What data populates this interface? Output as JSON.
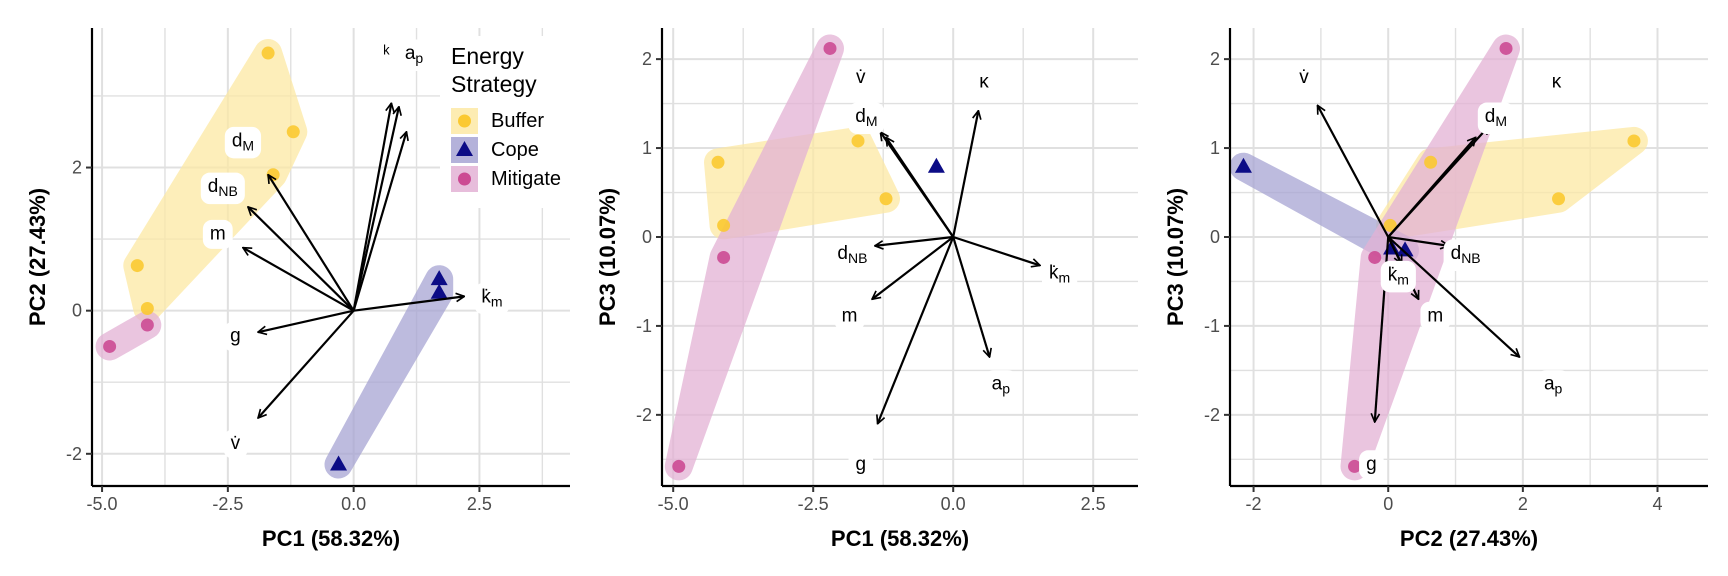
{
  "chart_data": [
    {
      "type": "scatter",
      "panel": "PCA biplot",
      "xlabel": "PC1 (58.32%)",
      "ylabel": "PC2 (27.43%)",
      "xlim": [
        -5.2,
        4.3
      ],
      "ylim": [
        -2.45,
        3.95
      ],
      "xticks": [
        -5.0,
        -2.5,
        0.0,
        2.5
      ],
      "xtick_labels": [
        "-5.0",
        "-2.5",
        "0.0",
        "2.5"
      ],
      "yticks": [
        -2,
        0,
        2
      ],
      "ytick_labels": [
        "-2",
        "0",
        "2"
      ],
      "series": [
        {
          "name": "Buffer",
          "points": [
            [
              -1.7,
              3.6
            ],
            [
              -1.2,
              2.5
            ],
            [
              -4.3,
              0.63
            ],
            [
              -4.1,
              0.03
            ],
            [
              -1.6,
              1.9
            ]
          ]
        },
        {
          "name": "Cope",
          "points": [
            [
              1.7,
              0.44
            ],
            [
              1.7,
              0.25
            ],
            [
              -0.3,
              -2.15
            ]
          ]
        },
        {
          "name": "Mitigate",
          "points": [
            [
              -4.85,
              -0.5
            ],
            [
              -4.1,
              -0.2
            ]
          ]
        }
      ],
      "vectors": [
        {
          "label": "a_p",
          "x": 0.75,
          "y": 2.9
        },
        {
          "label": "a_p",
          "x": 0.9,
          "y": 2.85
        },
        {
          "label": "a_p",
          "x": 1.05,
          "y": 2.5
        },
        {
          "label": "d_M",
          "x": -1.7,
          "y": 1.9
        },
        {
          "label": "d_NB",
          "x": -2.1,
          "y": 1.45
        },
        {
          "label": "m",
          "x": -2.2,
          "y": 0.88
        },
        {
          "label": "g",
          "x": -1.9,
          "y": -0.3
        },
        {
          "label": "v̇",
          "x": -1.9,
          "y": -1.5
        },
        {
          "label": "k̇_m",
          "x": 2.2,
          "y": 0.2
        }
      ],
      "vector_labels": [
        {
          "text": "ᵏ",
          "x": 0.65,
          "y": 3.6
        },
        {
          "text": "a",
          "sub": "p",
          "x": 1.2,
          "y": 3.6
        },
        {
          "text": "d",
          "sub": "M",
          "x": -2.2,
          "y": 2.38
        },
        {
          "text": "d",
          "sub": "NB",
          "x": -2.6,
          "y": 1.74
        },
        {
          "text": "m",
          "x": -2.7,
          "y": 1.08
        },
        {
          "text": "g",
          "x": -2.35,
          "y": -0.35
        },
        {
          "text": "v̇",
          "x": -2.35,
          "y": -1.85
        },
        {
          "text": "k̇",
          "sub": "m",
          "x": 2.75,
          "y": 0.2
        }
      ]
    },
    {
      "type": "scatter",
      "panel": "PCA biplot",
      "xlabel": "PC1 (58.32%)",
      "ylabel": "PC3 (10.07%)",
      "xlim": [
        -5.2,
        3.3
      ],
      "ylim": [
        -2.8,
        2.35
      ],
      "xticks": [
        -5.0,
        -2.5,
        0.0,
        2.5
      ],
      "xtick_labels": [
        "-5.0",
        "-2.5",
        "0.0",
        "2.5"
      ],
      "yticks": [
        -2,
        -1,
        0,
        1,
        2
      ],
      "ytick_labels": [
        "-2",
        "-1",
        "0",
        "1",
        "2"
      ],
      "series": [
        {
          "name": "Buffer",
          "points": [
            [
              -4.2,
              0.84
            ],
            [
              -4.1,
              0.13
            ],
            [
              -1.7,
              1.08
            ],
            [
              -1.2,
              0.43
            ]
          ]
        },
        {
          "name": "Cope",
          "points": [
            [
              -0.3,
              0.79
            ]
          ]
        },
        {
          "name": "Mitigate",
          "points": [
            [
              -2.2,
              2.12
            ],
            [
              -4.1,
              -0.23
            ],
            [
              -4.9,
              -2.58
            ]
          ]
        }
      ],
      "vectors": [
        {
          "label": "κ",
          "x": 0.45,
          "y": 1.42
        },
        {
          "label": "v̇",
          "x": -1.3,
          "y": 1.18
        },
        {
          "label": "d_M",
          "x": -1.2,
          "y": 1.12
        },
        {
          "label": "d_NB",
          "x": -1.4,
          "y": -0.1
        },
        {
          "label": "m",
          "x": -1.45,
          "y": -0.7
        },
        {
          "label": "g",
          "x": -1.35,
          "y": -2.1
        },
        {
          "label": "a_p",
          "x": 0.65,
          "y": -1.35
        },
        {
          "label": "k̇_m",
          "x": 1.55,
          "y": -0.32
        }
      ],
      "vector_labels": [
        {
          "text": "v̇",
          "x": -1.65,
          "y": 1.8
        },
        {
          "text": "κ",
          "x": 0.55,
          "y": 1.75
        },
        {
          "text": "d",
          "sub": "M",
          "x": -1.55,
          "y": 1.36
        },
        {
          "text": "d",
          "sub": "NB",
          "x": -1.8,
          "y": -0.18
        },
        {
          "text": "m",
          "x": -1.85,
          "y": -0.88
        },
        {
          "text": "a",
          "sub": "p",
          "x": 0.85,
          "y": -1.65
        },
        {
          "text": "k̇",
          "sub": "m",
          "x": 1.9,
          "y": -0.4
        },
        {
          "text": "g",
          "x": -1.65,
          "y": -2.55
        }
      ]
    },
    {
      "type": "scatter",
      "panel": "PCA biplot",
      "xlabel": "PC2 (27.43%)",
      "ylabel": "PC3 (10.07%)",
      "xlim": [
        -2.35,
        4.75
      ],
      "ylim": [
        -2.8,
        2.35
      ],
      "xticks": [
        -2,
        0,
        2,
        4
      ],
      "xtick_labels": [
        "-2",
        "0",
        "2",
        "4"
      ],
      "yticks": [
        -2,
        -1,
        0,
        1,
        2
      ],
      "ytick_labels": [
        "-2",
        "-1",
        "0",
        "1",
        "2"
      ],
      "series": [
        {
          "name": "Buffer",
          "points": [
            [
              0.63,
              0.84
            ],
            [
              0.03,
              0.13
            ],
            [
              3.65,
              1.08
            ],
            [
              2.53,
              0.43
            ]
          ]
        },
        {
          "name": "Cope",
          "points": [
            [
              -2.15,
              0.79
            ],
            [
              0.05,
              -0.13
            ],
            [
              0.25,
              -0.15
            ]
          ]
        },
        {
          "name": "Mitigate",
          "points": [
            [
              1.75,
              2.12
            ],
            [
              -0.2,
              -0.23
            ],
            [
              -0.5,
              -2.58
            ]
          ]
        }
      ],
      "vectors": [
        {
          "label": "v̇",
          "x": -1.05,
          "y": 1.48
        },
        {
          "label": "κ",
          "x": 1.5,
          "y": 1.25
        },
        {
          "label": "d_M",
          "x": 1.3,
          "y": 1.12
        },
        {
          "label": "d_NB",
          "x": 0.9,
          "y": -0.1
        },
        {
          "label": "k̇_m",
          "x": 0.2,
          "y": -0.3
        },
        {
          "label": "m",
          "x": 0.45,
          "y": -0.7
        },
        {
          "label": "a_p",
          "x": 1.95,
          "y": -1.35
        },
        {
          "label": "g",
          "x": -0.2,
          "y": -2.08
        }
      ],
      "vector_labels": [
        {
          "text": "v̇",
          "x": -1.25,
          "y": 1.8
        },
        {
          "text": "κ",
          "x": 2.5,
          "y": 1.75
        },
        {
          "text": "d",
          "sub": "M",
          "x": 1.6,
          "y": 1.36
        },
        {
          "text": "d",
          "sub": "NB",
          "x": 1.15,
          "y": -0.18
        },
        {
          "text": "k̇",
          "sub": "m",
          "x": 0.15,
          "y": -0.42
        },
        {
          "text": "m",
          "x": 0.7,
          "y": -0.88
        },
        {
          "text": "a",
          "sub": "p",
          "x": 2.45,
          "y": -1.65
        },
        {
          "text": "g",
          "x": -0.25,
          "y": -2.55
        }
      ]
    }
  ],
  "legend": {
    "title_lines": [
      "Energy",
      "Strategy"
    ],
    "placement": "inside-top-right of first panel",
    "items": [
      {
        "label": "Buffer",
        "shape": "circle"
      },
      {
        "label": "Cope",
        "shape": "triangle"
      },
      {
        "label": "Mitigate",
        "shape": "circle"
      }
    ]
  },
  "colors": {
    "Buffer_fill": "#fde9a4",
    "Buffer_point": "#fbc931",
    "Cope_fill": "#a7a5d3",
    "Cope_point": "#0c0c86",
    "Mitigate_fill": "#e3b2d5",
    "Mitigate_point": "#cc4a93",
    "grid": "#e0e0e0",
    "vector": "#000000"
  }
}
